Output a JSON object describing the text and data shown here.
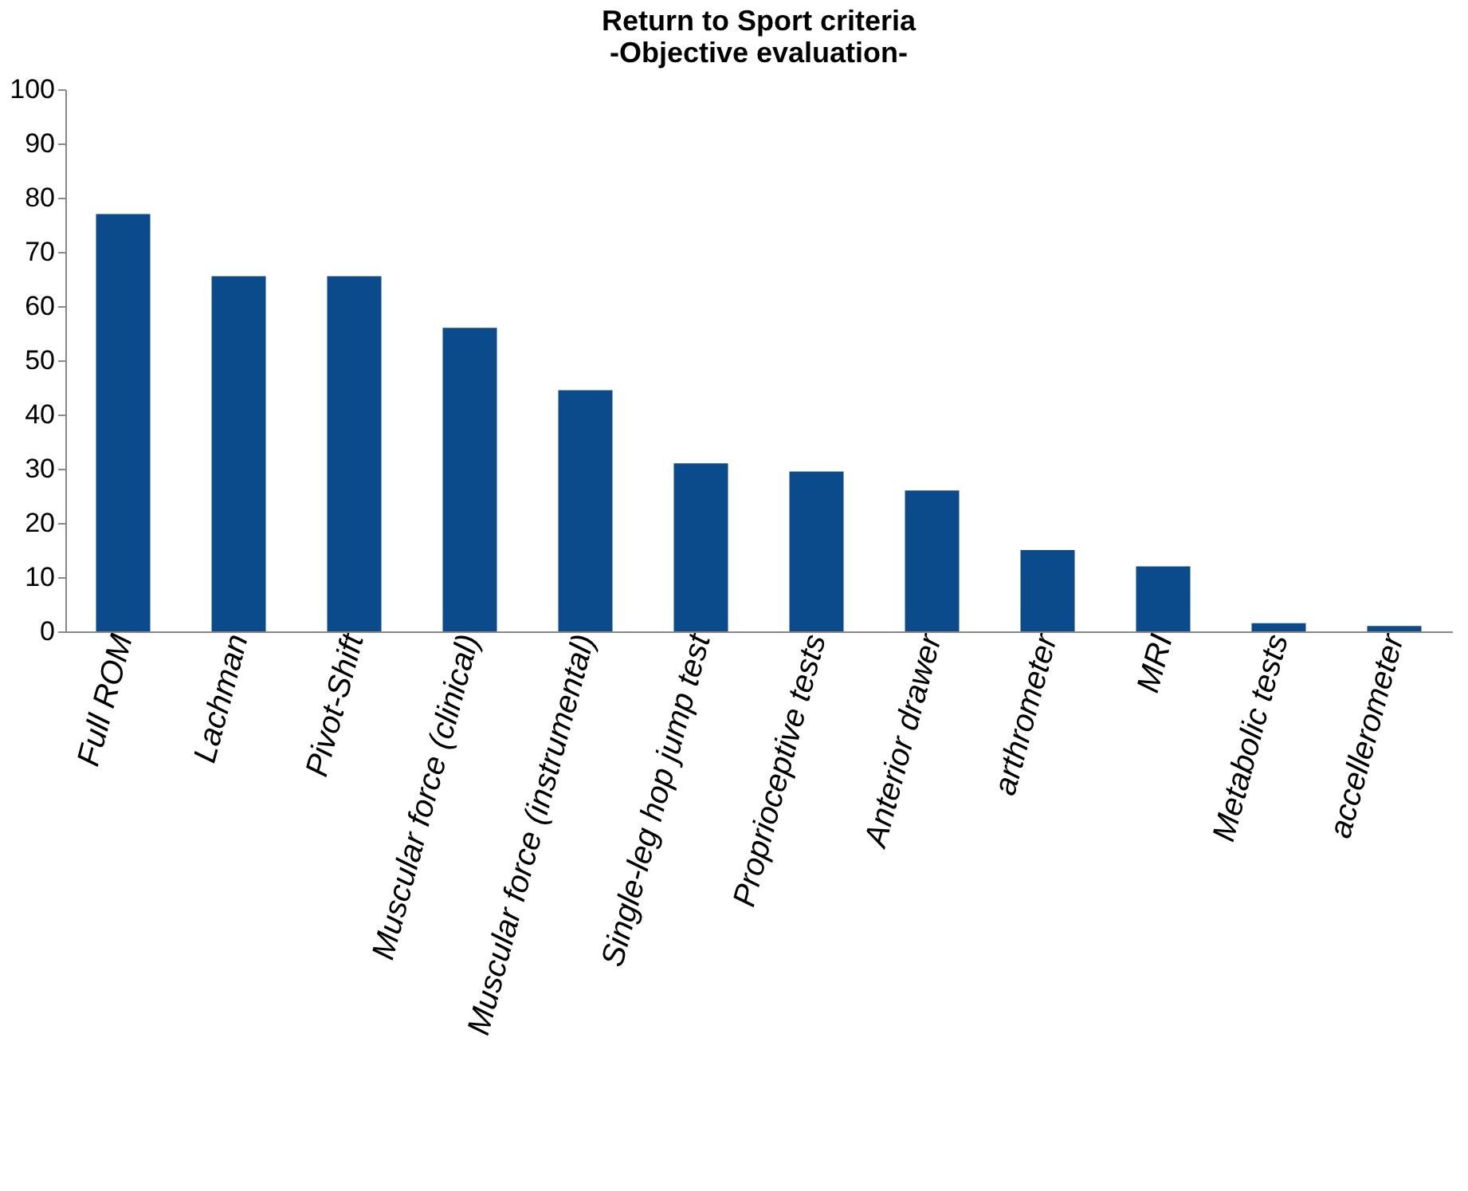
{
  "chart_data": {
    "type": "bar",
    "title": [
      "Return to Sport criteria",
      "-Objective evaluation-"
    ],
    "categories": [
      "Full ROM",
      "Lachman",
      "Pivot-Shift",
      "Muscular force (clinical)",
      "Muscular force (instrumental)",
      "Single-leg hop jump test",
      "Proprioceptive tests",
      "Anterior drawer",
      "arthrometer",
      "MRI",
      "Metabolic tests",
      "accellerometer"
    ],
    "values": [
      77,
      65.5,
      65.5,
      56,
      44.5,
      31,
      29.5,
      26,
      15,
      12,
      1.5,
      1
    ],
    "color": "#0b4a8b",
    "ylim": [
      0,
      100
    ],
    "yticks": [
      0,
      10,
      20,
      30,
      40,
      50,
      60,
      70,
      80,
      90,
      100
    ],
    "grid": false
  }
}
